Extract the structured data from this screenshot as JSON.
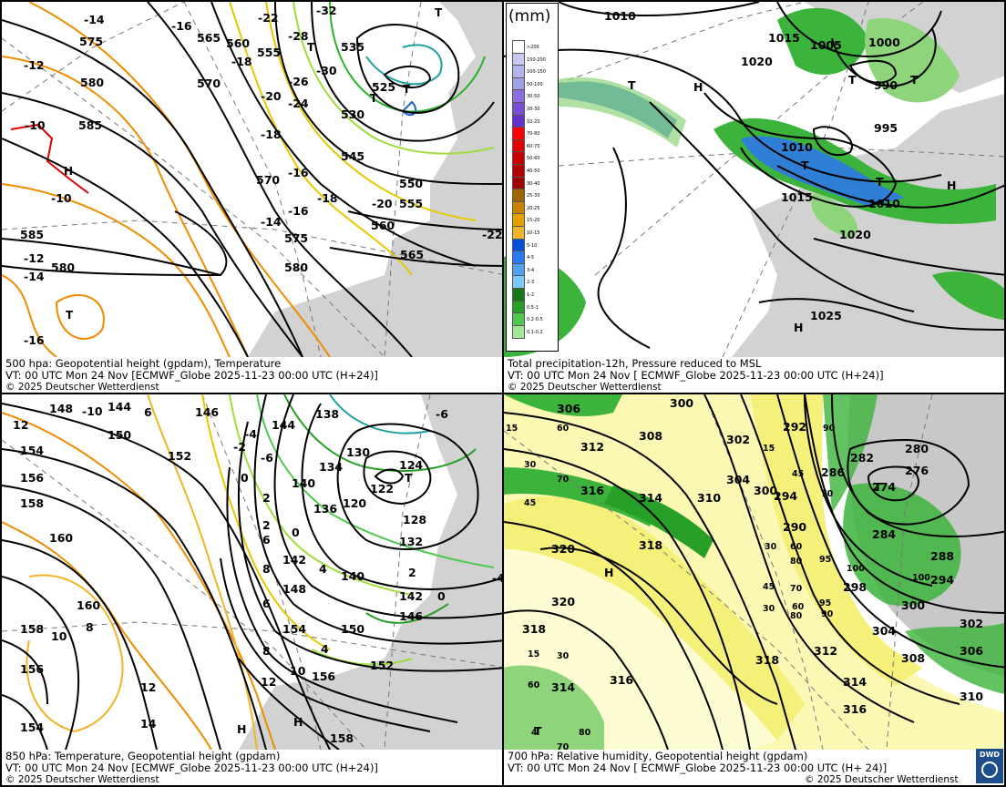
{
  "panels": [
    {
      "id": "p500",
      "caption_line1": "500 hpa: Geopotential height (gpdam), Temperature",
      "caption_line2": "VT: 00 UTC Mon  24 Nov [ECMWF_Globe 2025-11-23 00:00 UTC  (H+24)]",
      "caption_line3": "© 2025 Deutscher Wetterdienst",
      "height_labels": [
        "575",
        "580",
        "585",
        "585",
        "580",
        "570",
        "565",
        "560",
        "555",
        "535",
        "530",
        "525",
        "545",
        "550",
        "555",
        "560",
        "565",
        "570",
        "575",
        "580"
      ],
      "temp_labels": [
        "-14",
        "-16",
        "-22",
        "-32",
        "-28",
        "-30",
        "-26",
        "-24",
        "-20",
        "-18",
        "-16",
        "-18",
        "-20",
        "-22",
        "-12",
        "-10",
        "-10",
        "-12",
        "-14",
        "-16",
        "-18",
        "-14",
        "-16"
      ],
      "markers": [
        "H",
        "T",
        "T",
        "T",
        "T"
      ]
    },
    {
      "id": "pprecip",
      "caption_line1": "Total precipitation-12h, Pressure reduced to MSL",
      "caption_line2": "VT: 00 UTC Mon  24 Nov [ ECMWF_Globe 2025-11-23 00:00 UTC (H+24)]",
      "caption_line3": "© 2025 Deutscher Wetterdienst",
      "pressure_labels": [
        "1010",
        "1015",
        "1005",
        "1000",
        "1020",
        "990",
        "995",
        "1010",
        "1015",
        "1010",
        "1020",
        "1025"
      ],
      "markers": [
        "T",
        "H",
        "T",
        "T",
        "T",
        "T",
        "H",
        "H"
      ]
    },
    {
      "id": "p850",
      "caption_line1": "850 hPa:  Temperature, Geopotential height (gpdam)",
      "caption_line2": "VT: 00 UTC Mon  24 Nov [ECMWF_Globe 2025-11-23 00:00 UTC (H+24)]",
      "caption_line3": "© 2025 Deutscher Wetterdienst",
      "height_labels": [
        "148",
        "144",
        "150",
        "146",
        "152",
        "154",
        "156",
        "158",
        "160",
        "160",
        "158",
        "156",
        "154",
        "144",
        "138",
        "134",
        "130",
        "124",
        "122",
        "128",
        "132",
        "140",
        "142",
        "146",
        "148",
        "150",
        "152",
        "154",
        "156",
        "158",
        "120",
        "136",
        "140",
        "142"
      ],
      "temp_labels": [
        "12",
        "10",
        "8",
        "6",
        "-4",
        "-6",
        "-2",
        "0",
        "2",
        "4",
        "6",
        "8",
        "10",
        "12",
        "14",
        "8",
        "10",
        "12",
        "2",
        "0",
        "6",
        "8",
        "2",
        "4",
        "-2",
        "-4"
      ],
      "markers": [
        "H",
        "H",
        "T"
      ]
    },
    {
      "id": "p700",
      "caption_line1": "700 hPa:  Relative humidity, Geopotential height (gpdam)",
      "caption_line2": "VT: 00 UTC Mon  24 Nov [ ECMWF_Globe 2025-11-23 00:00 UTC (H+ 24)]",
      "caption_line3": "© 2025 Deutscher Wetterdienst",
      "height_labels": [
        "306",
        "300",
        "308",
        "312",
        "316",
        "314",
        "318",
        "320",
        "320",
        "318",
        "316",
        "314",
        "310",
        "304",
        "302",
        "300",
        "292",
        "294",
        "290",
        "286",
        "282",
        "280",
        "276",
        "274",
        "284",
        "288",
        "294",
        "298",
        "300",
        "304",
        "308",
        "312",
        "314",
        "316",
        "302",
        "306",
        "310",
        "318"
      ],
      "rh_labels": [
        "15",
        "60",
        "30",
        "70",
        "45",
        "30",
        "15",
        "60",
        "45",
        "80",
        "70",
        "15",
        "45",
        "30",
        "60",
        "60",
        "80",
        "95",
        "100",
        "70",
        "45",
        "30",
        "90",
        "95",
        "80",
        "100",
        "90",
        "70"
      ],
      "markers": [
        "H",
        "T",
        "T"
      ]
    }
  ],
  "legend": {
    "unit": "(mm)",
    "entries": [
      ">200",
      "150-200",
      "100-150",
      "50-100",
      "30-50",
      "20-30",
      "10-20",
      "70-80",
      "60-70",
      "50-60",
      "40-50",
      "30-40",
      "25-30",
      "20-25",
      "15-20",
      "10-15",
      "5-10",
      "4-5",
      "3-4",
      "2-3",
      "1-2",
      "0.5-1",
      "0.2-0.5",
      "0.1-0.2"
    ],
    "colors": [
      "#ffffff",
      "#c8c8f0",
      "#b4b4ec",
      "#a0a0e8",
      "#8c6ce0",
      "#7850d8",
      "#6434d0",
      "#ff0000",
      "#e40000",
      "#c80000",
      "#b40000",
      "#a00000",
      "#a06400",
      "#c88200",
      "#e6a000",
      "#f0b428",
      "#0050dc",
      "#2878f0",
      "#50a0f5",
      "#78c8fa",
      "#147814",
      "#28a028",
      "#50c850",
      "#a0e696"
    ]
  },
  "logo": "DWD",
  "colors": {
    "height": "#000000",
    "temp_warm": "#f08c00",
    "temp_cold": "#28a028",
    "land": "#d2d2d2",
    "rain_green": "#3cb43c",
    "rain_blue": "#2f7fd6",
    "rh_yellow": "#f5f07a"
  }
}
